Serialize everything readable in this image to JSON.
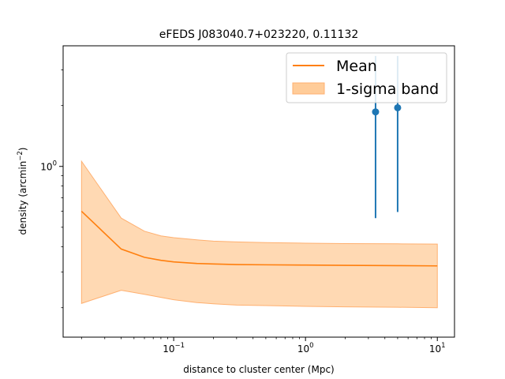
{
  "chart_data": {
    "type": "line",
    "title": "eFEDS J083040.7+023220, 0.11132",
    "xlabel": "distance to cluster center (Mpc)",
    "ylabel_main": "density (arcmin",
    "ylabel_sup": "−2",
    "ylabel_close": ")",
    "xscale": "log",
    "yscale": "log",
    "xlim": [
      0.0145,
      13.5
    ],
    "ylim": [
      0.143,
      3.95
    ],
    "xticks": [
      {
        "value": 0.1,
        "base": "10",
        "exp": "−1"
      },
      {
        "value": 1,
        "base": "10",
        "exp": "0"
      },
      {
        "value": 10,
        "base": "10",
        "exp": "1"
      }
    ],
    "yticks": [
      {
        "value": 1.0,
        "base": "10",
        "exp": "0"
      }
    ],
    "colors": {
      "mean": "#ff7f0e",
      "band": "#ffcc99",
      "points": "#1f77b4"
    },
    "legend": {
      "placement": "top-right",
      "items": [
        {
          "label": "Mean",
          "kind": "line"
        },
        {
          "label": "1-sigma band",
          "kind": "patch"
        }
      ]
    },
    "series": [
      {
        "name": "Mean",
        "x": [
          0.02,
          0.04,
          0.06,
          0.08,
          0.1,
          0.15,
          0.2,
          0.3,
          0.5,
          1,
          2,
          5,
          10
        ],
        "y": [
          0.6,
          0.39,
          0.355,
          0.343,
          0.337,
          0.331,
          0.329,
          0.327,
          0.326,
          0.325,
          0.324,
          0.323,
          0.322
        ]
      },
      {
        "name": "1-sigma band",
        "x": [
          0.02,
          0.04,
          0.06,
          0.08,
          0.1,
          0.15,
          0.2,
          0.3,
          0.5,
          1,
          2,
          5,
          10
        ],
        "lower": [
          0.21,
          0.244,
          0.233,
          0.225,
          0.219,
          0.212,
          0.209,
          0.206,
          0.205,
          0.203,
          0.202,
          0.201,
          0.2
        ],
        "upper": [
          1.06,
          0.555,
          0.478,
          0.453,
          0.444,
          0.433,
          0.427,
          0.423,
          0.42,
          0.417,
          0.415,
          0.414,
          0.413
        ]
      }
    ],
    "points": [
      {
        "x": 3.4,
        "y": 1.86,
        "ylow": 0.555,
        "yhigh": 3.52
      },
      {
        "x": 5.0,
        "y": 1.95,
        "ylow": 0.595,
        "yhigh": 3.52
      }
    ]
  }
}
